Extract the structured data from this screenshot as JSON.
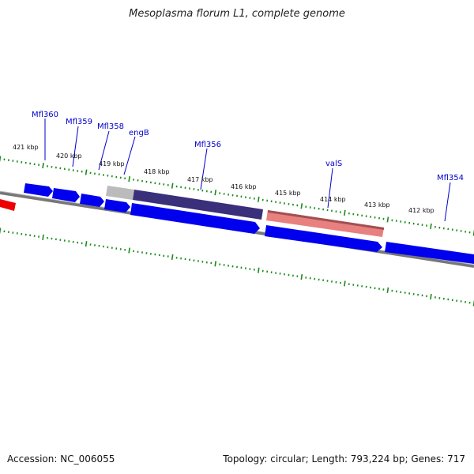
{
  "title": "Mesoplasma florum L1, complete genome",
  "footer": {
    "accession": "Accession: NC_006055",
    "summary": "Topology: circular; Length: 793,224 bp; Genes: 717"
  },
  "colors": {
    "background": "#ffffff",
    "backbone": "#777777",
    "cds_forward": "#0000ee",
    "trna_or_rna_red": "#ee0000",
    "highlight_dark": "#3a2f7a",
    "highlight_pink": "#e88080",
    "tick_green": "#1a8a1a",
    "label_blue": "#0000cc"
  },
  "tick_labels": [
    "421 kbp",
    "420 kbp",
    "419 kbp",
    "418 kbp",
    "417 kbp",
    "416 kbp",
    "415 kbp",
    "414 kbp",
    "413 kbp",
    "412 kbp"
  ],
  "gene_labels": [
    "Mfl360",
    "Mfl359",
    "Mfl358",
    "engB",
    "Mfl356",
    "valS",
    "Mfl354"
  ]
}
